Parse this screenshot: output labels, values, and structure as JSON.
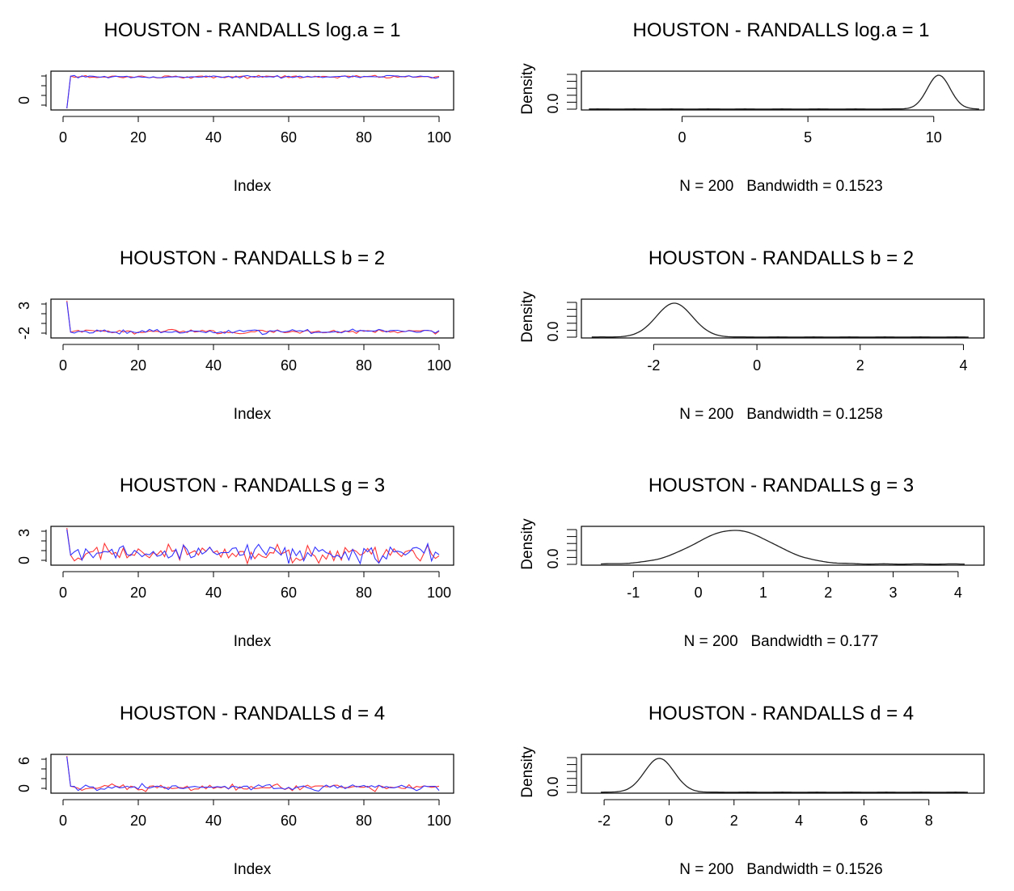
{
  "figure": {
    "background": "#ffffff",
    "trace_colors": [
      "#ff3333",
      "#3333ff"
    ],
    "density_color": "#222222"
  },
  "panels": [
    {
      "row": 0,
      "trace": {
        "title": "HOUSTON - RANDALLS log.a = 1",
        "xlabel": "Index",
        "xlim": [
          1,
          100
        ],
        "xticks": [
          "0",
          "20",
          "40",
          "60",
          "80",
          "100"
        ],
        "yticks": [
          "0"
        ],
        "ylim": [
          0,
          11.5
        ],
        "start": 0,
        "level": 10.2,
        "noise": 0.22
      },
      "density": {
        "title": "HOUSTON - RANDALLS log.a = 1",
        "ylabel": "Density",
        "ytick": "0.0",
        "xlabel": "N = 200   Bandwidth = 0.1523",
        "xticks": [
          "0",
          "5",
          "10"
        ],
        "xlim": [
          -4,
          12
        ],
        "range": [
          -3.7,
          11.8
        ],
        "peak_x": 10.2,
        "peak_sd": 0.45,
        "tail_weight": 0.004
      }
    },
    {
      "row": 1,
      "trace": {
        "title": "HOUSTON - RANDALLS b = 2",
        "xlabel": "Index",
        "xlim": [
          1,
          100
        ],
        "xticks": [
          "0",
          "20",
          "40",
          "60",
          "80",
          "100"
        ],
        "yticks": [
          "-2",
          "3"
        ],
        "ylim": [
          -2.5,
          3.5
        ],
        "start": 3.5,
        "level": -1.7,
        "noise": 0.18
      },
      "density": {
        "title": "HOUSTON - RANDALLS b = 2",
        "ylabel": "Density",
        "ytick": "0.0",
        "xlabel": "N = 200   Bandwidth = 0.1258",
        "xticks": [
          "-2",
          "0",
          "2",
          "4"
        ],
        "xlim": [
          -3.4,
          4.4
        ],
        "range": [
          -3.2,
          4.1
        ],
        "peak_x": -1.6,
        "peak_sd": 0.35,
        "tail_weight": 0.004
      }
    },
    {
      "row": 2,
      "trace": {
        "title": "HOUSTON - RANDALLS g = 3",
        "xlabel": "Index",
        "xlim": [
          1,
          100
        ],
        "xticks": [
          "0",
          "20",
          "40",
          "60",
          "80",
          "100"
        ],
        "yticks": [
          "0",
          "3"
        ],
        "ylim": [
          -0.6,
          3.7
        ],
        "start": 3.7,
        "level": 0.6,
        "noise": 0.55
      },
      "density": {
        "title": "HOUSTON - RANDALLS g = 3",
        "ylabel": "Density",
        "ytick": "0.0",
        "xlabel": "N = 200   Bandwidth = 0.177",
        "xticks": [
          "-1",
          "0",
          "1",
          "2",
          "3",
          "4"
        ],
        "xlim": [
          -1.8,
          4.4
        ],
        "range": [
          -1.5,
          4.1
        ],
        "peak_x": 0.55,
        "peak_sd": 0.6,
        "tail_weight": 0.01
      }
    },
    {
      "row": 3,
      "trace": {
        "title": "HOUSTON - RANDALLS d = 4",
        "xlabel": "Index",
        "xlim": [
          1,
          100
        ],
        "xticks": [
          "0",
          "20",
          "40",
          "60",
          "80",
          "100"
        ],
        "yticks": [
          "0",
          "6"
        ],
        "ylim": [
          -1.3,
          8.6
        ],
        "start": 8.6,
        "level": -0.2,
        "noise": 0.45
      },
      "density": {
        "title": "HOUSTON - RANDALLS d = 4",
        "ylabel": "Density",
        "ytick": "0.0",
        "xlabel": "N = 200   Bandwidth = 0.1526",
        "xticks": [
          "-2",
          "0",
          "2",
          "4",
          "6",
          "8"
        ],
        "xlim": [
          -2.7,
          9.7
        ],
        "range": [
          -2.1,
          9.2
        ],
        "peak_x": -0.3,
        "peak_sd": 0.45,
        "tail_weight": 0.004
      }
    }
  ]
}
